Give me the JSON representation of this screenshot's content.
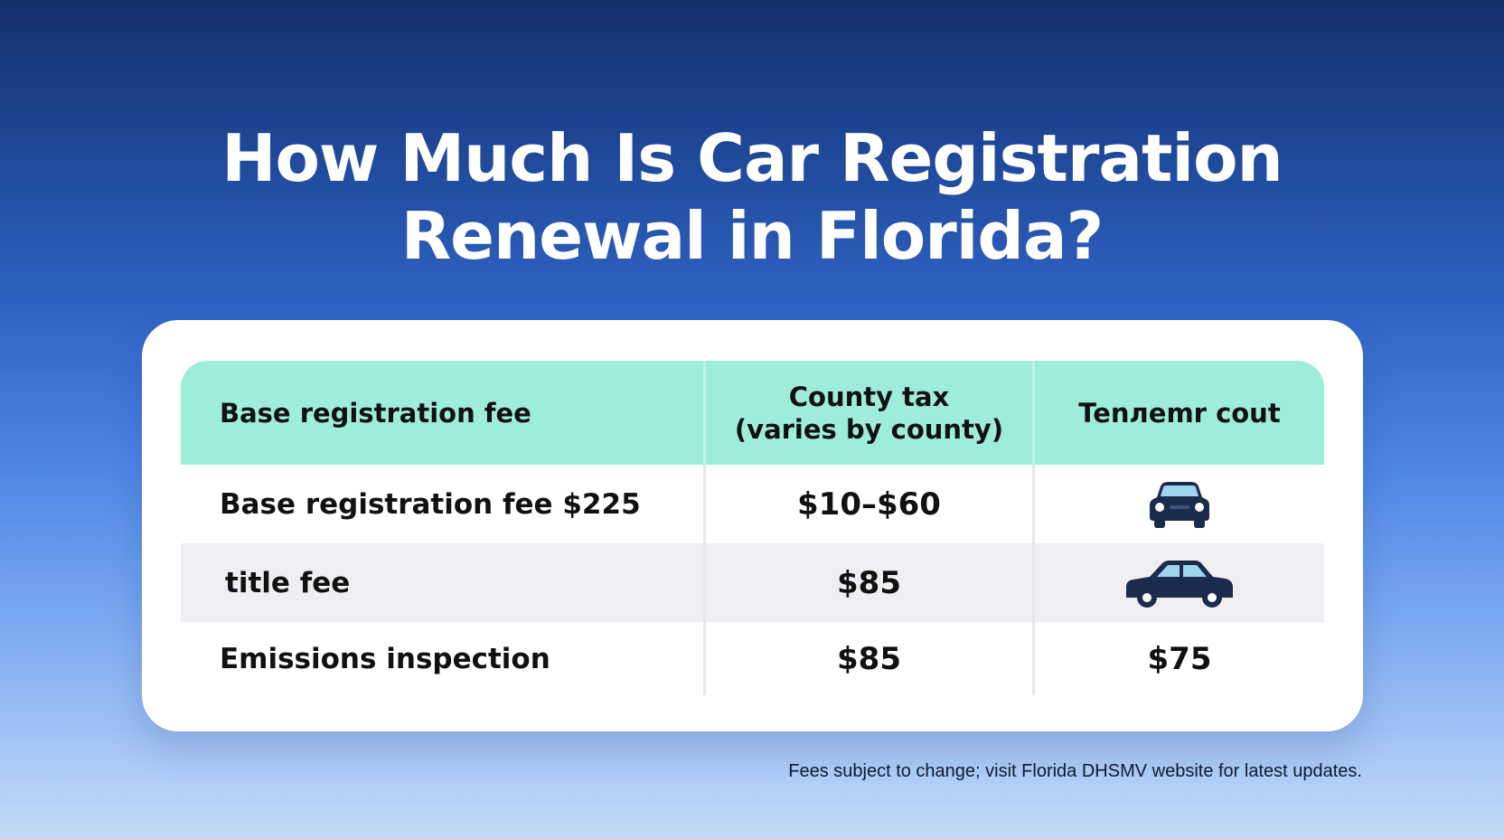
{
  "title": {
    "line1": "How Much Is Car Registration",
    "line2": "Renewal in Florida?"
  },
  "table": {
    "headers": {
      "col1": "Base registration fee",
      "col2_line1": "County tax",
      "col2_line2": "(varies by county)",
      "col3": "Tenлemr cout"
    },
    "rows": [
      {
        "label": "Base registration fee $225",
        "value": "$10–$60",
        "icon": "car-front-icon"
      },
      {
        "label": "title fee",
        "value": "$85",
        "icon": "car-side-icon"
      },
      {
        "label": "Emissions inspection",
        "value": "$85",
        "extra": "$75"
      }
    ]
  },
  "footnote": "Fees subject to change; visit Florida DHSMV website for latest updates.",
  "colors": {
    "header_bg": "#9eeddb",
    "alt_row_bg": "#efeff3",
    "icon_navy": "#1a2b4c",
    "icon_window": "#9ed4ee"
  }
}
